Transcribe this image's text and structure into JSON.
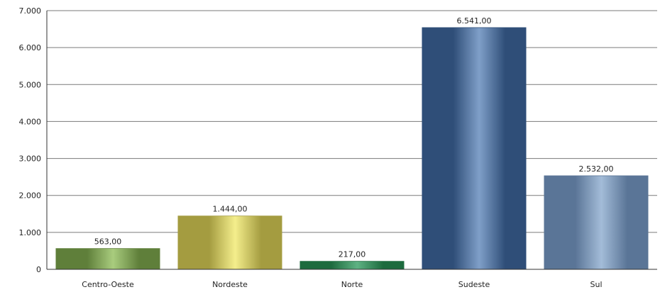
{
  "chart_data": {
    "type": "bar",
    "categories": [
      "Centro-Oeste",
      "Nordeste",
      "Norte",
      "Sudeste",
      "Sul"
    ],
    "values": [
      563,
      1444,
      217,
      6541,
      2532
    ],
    "data_labels": [
      "563,00",
      "1.444,00",
      "217,00",
      "6.541,00",
      "2.532,00"
    ],
    "ylim": [
      0,
      7000
    ],
    "yticks": [
      0,
      1000,
      2000,
      3000,
      4000,
      5000,
      6000,
      7000
    ],
    "ytick_labels": [
      "0",
      "1.000",
      "2.000",
      "3.000",
      "4.000",
      "5.000",
      "6.000",
      "7.000"
    ],
    "grid": true,
    "bar_colors": [
      {
        "dark": "#5f7f3a",
        "light": "#a9cc7e"
      },
      {
        "dark": "#a49c40",
        "light": "#f4ee8c"
      },
      {
        "dark": "#1d6b3e",
        "light": "#5eb283"
      },
      {
        "dark": "#2f4e78",
        "light": "#7f9fc8"
      },
      {
        "dark": "#5a7597",
        "light": "#a3bcd8"
      }
    ],
    "title": "",
    "xlabel": "",
    "ylabel": ""
  }
}
